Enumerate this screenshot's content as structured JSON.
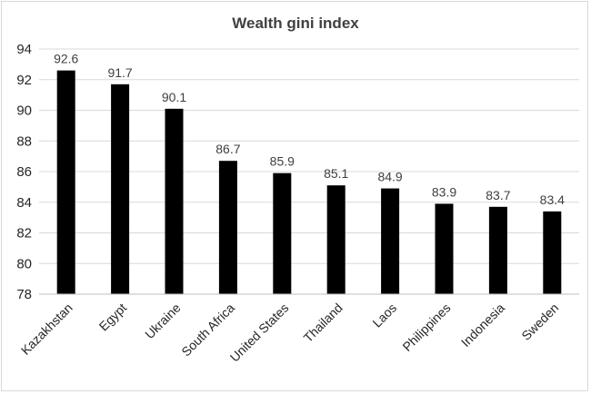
{
  "chart_data": {
    "type": "bar",
    "title": "Wealth gini index",
    "categories": [
      "Kazakhstan",
      "Egypt",
      "Ukraine",
      "South Africa",
      "United States",
      "Thailand",
      "Laos",
      "Philippines",
      "Indonesia",
      "Sweden"
    ],
    "values": [
      92.6,
      91.7,
      90.1,
      86.7,
      85.9,
      85.1,
      84.9,
      83.9,
      83.7,
      83.4
    ],
    "data_labels": [
      "92.6",
      "91.7",
      "90.1",
      "86.7",
      "85.9",
      "85.1",
      "84.9",
      "83.9",
      "83.7",
      "83.4"
    ],
    "yticks": [
      "78",
      "80",
      "82",
      "84",
      "86",
      "88",
      "90",
      "92",
      "94"
    ],
    "ylim": [
      78,
      94
    ],
    "xlabel": "",
    "ylabel": "",
    "grid": true,
    "legend": "none",
    "bar_color": "#000000"
  }
}
